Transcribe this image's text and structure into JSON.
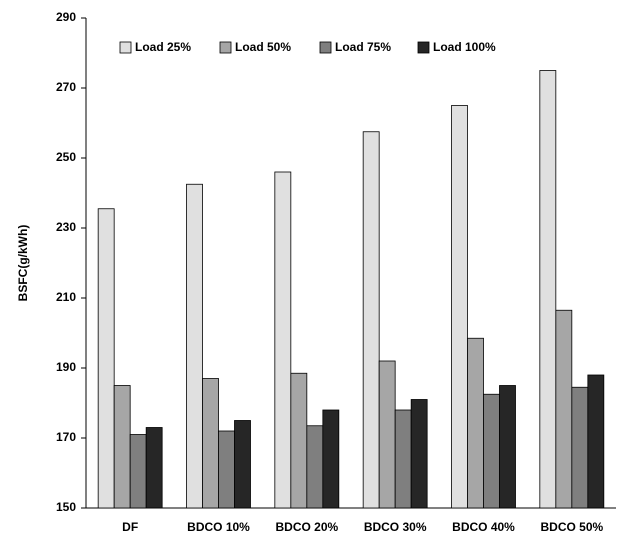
{
  "chart_data": {
    "type": "bar",
    "y_label": "BSFC(g/kWh)",
    "categories": [
      "DF",
      "BDCO 10%",
      "BDCO 20%",
      "BDCO 30%",
      "BDCO 40%",
      "BDCO 50%"
    ],
    "series": [
      {
        "name": "Load 25%",
        "color": "#e0e0e0",
        "values": [
          235.5,
          242.5,
          246,
          257.5,
          265,
          275
        ]
      },
      {
        "name": "Load 50%",
        "color": "#a6a6a6",
        "values": [
          185,
          187,
          188.5,
          192,
          198.5,
          206.5
        ]
      },
      {
        "name": "Load 75%",
        "color": "#7f7f7f",
        "values": [
          171,
          172,
          173.5,
          178,
          182.5,
          184.5
        ]
      },
      {
        "name": "Load 100%",
        "color": "#262626",
        "values": [
          173,
          175,
          178,
          181,
          185,
          188
        ]
      }
    ],
    "ylim": [
      150,
      290
    ],
    "yticks": [
      150,
      170,
      190,
      210,
      230,
      250,
      270,
      290
    ],
    "grid": false
  }
}
